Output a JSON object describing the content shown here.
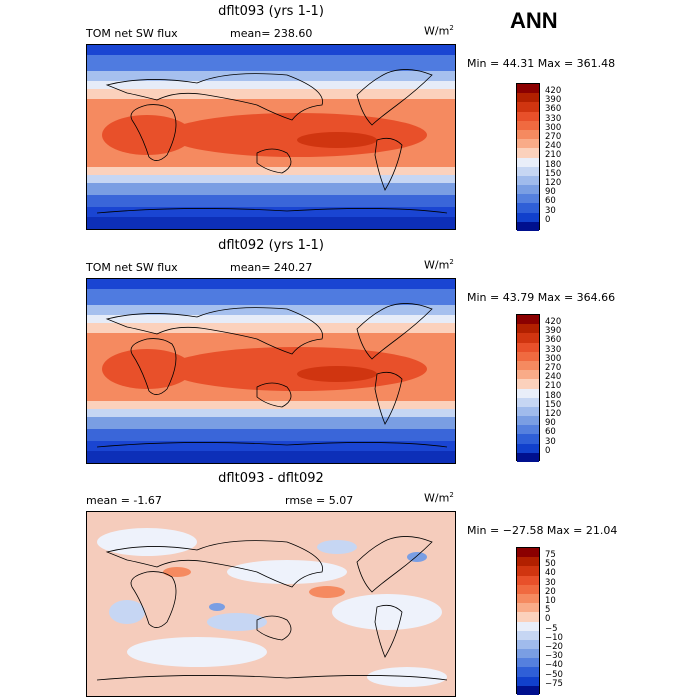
{
  "season": "ANN",
  "units": "W/m",
  "units_sup": "2",
  "panels": [
    {
      "title": "dflt093 (yrs 1-1)",
      "variable": "TOM net SW flux",
      "stat": "mean= 238.60",
      "minmax": "Min =  44.31 Max = 361.48",
      "colorbar": {
        "labels": [
          "420",
          "390",
          "360",
          "330",
          "300",
          "270",
          "240",
          "210",
          "180",
          "150",
          "120",
          "90",
          "60",
          "30",
          "0"
        ],
        "colors": [
          "#8b0000",
          "#b22000",
          "#d03510",
          "#e8502a",
          "#f06a40",
          "#f58a60",
          "#f9ab88",
          "#fbd1bc",
          "#e9eef9",
          "#c6d6f3",
          "#a0bbec",
          "#7a9ee3",
          "#5580de",
          "#2f5fd7",
          "#1140cc",
          "#00108e"
        ]
      }
    },
    {
      "title": "dflt092 (yrs 1-1)",
      "variable": "TOM net SW flux",
      "stat": "mean= 240.27",
      "minmax": "Min =  43.79 Max = 364.66",
      "colorbar": {
        "labels": [
          "420",
          "390",
          "360",
          "330",
          "300",
          "270",
          "240",
          "210",
          "180",
          "150",
          "120",
          "90",
          "60",
          "30",
          "0"
        ],
        "colors": [
          "#8b0000",
          "#b22000",
          "#d03510",
          "#e8502a",
          "#f06a40",
          "#f58a60",
          "#f9ab88",
          "#fbd1bc",
          "#e9eef9",
          "#c6d6f3",
          "#a0bbec",
          "#7a9ee3",
          "#5580de",
          "#2f5fd7",
          "#1140cc",
          "#00108e"
        ]
      }
    },
    {
      "title": "dflt093 - dflt092",
      "stat_left": "mean =   -1.67",
      "stat_right": "rmse =   5.07",
      "minmax": "Min = −27.58 Max =  21.04",
      "colorbar": {
        "labels": [
          "75",
          "50",
          "40",
          "30",
          "20",
          "10",
          "5",
          "0",
          "−5",
          "−10",
          "−20",
          "−30",
          "−40",
          "−50",
          "−75"
        ],
        "colors": [
          "#8b0000",
          "#b22000",
          "#d03510",
          "#e8502a",
          "#f06a40",
          "#f58a60",
          "#f9ab88",
          "#fbd1bc",
          "#e9eef9",
          "#c6d6f3",
          "#a0bbec",
          "#7a9ee3",
          "#5580de",
          "#2f5fd7",
          "#1140cc",
          "#00108e"
        ]
      }
    }
  ]
}
